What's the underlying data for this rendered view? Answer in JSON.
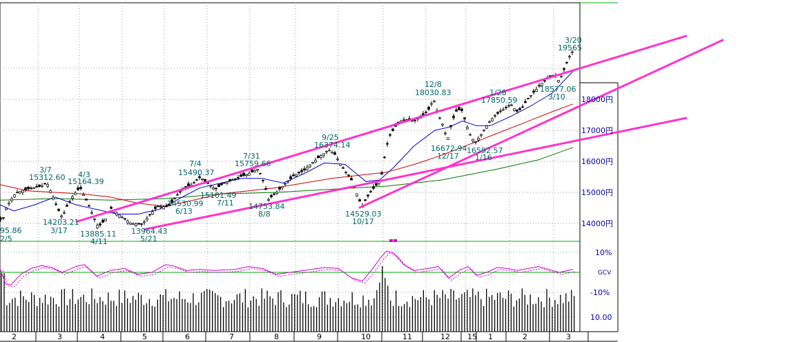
{
  "colors": {
    "frame": "#000000",
    "panel_line": "#00aa00",
    "grid": "#999999",
    "price": "#000000",
    "ma_short": "#0000cc",
    "ma_mid": "#cc0000",
    "ma_long": "#007700",
    "trendline": "#ff33cc",
    "annotation": "#006666",
    "label": "#0000aa",
    "oscillator": "#cc00cc",
    "volume": "#000000"
  },
  "chart_data": {
    "type": "line",
    "description_units": "Nikkei-style daily price chart (yen) with moving averages, trend channel lines, oscillator and volume",
    "price_axis": {
      "min": 13000,
      "max": 19800,
      "ticks": [
        14000,
        15000,
        16000,
        17000,
        18000
      ],
      "tick_labels": [
        "14000円",
        "15000円",
        "16000円",
        "17000円",
        "18000円"
      ]
    },
    "month_labels": [
      "2",
      "3",
      "4",
      "5",
      "6",
      "7",
      "8",
      "9",
      "10",
      "11",
      "12",
      "15",
      "1",
      "2",
      "3"
    ],
    "osc_labels": [
      "10%",
      "GCV",
      "-10%"
    ],
    "volume_label": "10.00",
    "annotations": [
      {
        "text": "3/7",
        "price": 15312.6,
        "date": "3/7"
      },
      {
        "text": "15312.60",
        "price": 15312.6
      },
      {
        "text": "4/3",
        "price": 15164.39
      },
      {
        "text": "15164.39",
        "price": 15164.39
      },
      {
        "text": "14203.21",
        "price": 14203.21
      },
      {
        "text": "3/17",
        "price": 14203.21
      },
      {
        "text": "13885.11",
        "price": 13885.11
      },
      {
        "text": "4/11",
        "price": 13885.11
      },
      {
        "text": "13964.43",
        "price": 13964.43
      },
      {
        "text": "5/21",
        "price": 13964.43
      },
      {
        "text": "14530.99",
        "price": 14530.99
      },
      {
        "text": "6/13",
        "price": 14530.99
      },
      {
        "text": "7/4",
        "price": 15490.37
      },
      {
        "text": "15490.37",
        "price": 15490.37
      },
      {
        "text": "15101.49",
        "price": 15101.49
      },
      {
        "text": "7/11",
        "price": 15101.49
      },
      {
        "text": "7/31",
        "price": 15759.66
      },
      {
        "text": "15759.66",
        "price": 15759.66
      },
      {
        "text": "14753.84",
        "price": 14753.84
      },
      {
        "text": "8/8",
        "price": 14753.84
      },
      {
        "text": "9/25",
        "price": 16374.14
      },
      {
        "text": "16374.14",
        "price": 16374.14
      },
      {
        "text": "14529.03",
        "price": 14529.03
      },
      {
        "text": "10/17",
        "price": 14529.03
      },
      {
        "text": "12/8",
        "price": 18030.83
      },
      {
        "text": "18030.83",
        "price": 18030.83
      },
      {
        "text": "16672.94",
        "price": 16672.94
      },
      {
        "text": "12/17",
        "price": 16672.94
      },
      {
        "text": "1/28",
        "price": 17850.59
      },
      {
        "text": "17850.59",
        "price": 17850.59
      },
      {
        "text": "16592.57",
        "price": 16592.57
      },
      {
        "text": "1/16",
        "price": 16592.57
      },
      {
        "text": "3/20",
        "price": 19565
      },
      {
        "text": "19565",
        "price": 19565
      },
      {
        "text": "18577.06",
        "price": 18577.06
      },
      {
        "text": "3/10",
        "price": 18577.06
      },
      {
        "text": "95.86",
        "price": 14095.86
      },
      {
        "text": "2/5",
        "price": 14095.86
      }
    ],
    "price_path": [
      [
        0,
        14150
      ],
      [
        4,
        14096
      ],
      [
        8,
        14450
      ],
      [
        14,
        14700
      ],
      [
        22,
        14950
      ],
      [
        30,
        15050
      ],
      [
        40,
        15100
      ],
      [
        50,
        15150
      ],
      [
        60,
        15200
      ],
      [
        68,
        15310
      ],
      [
        76,
        14900
      ],
      [
        84,
        14450
      ],
      [
        90,
        14203
      ],
      [
        98,
        14600
      ],
      [
        106,
        14900
      ],
      [
        116,
        15164
      ],
      [
        126,
        14700
      ],
      [
        134,
        14300
      ],
      [
        142,
        13885
      ],
      [
        152,
        14100
      ],
      [
        160,
        14500
      ],
      [
        168,
        14350
      ],
      [
        180,
        14150
      ],
      [
        190,
        14000
      ],
      [
        206,
        13964
      ],
      [
        216,
        14250
      ],
      [
        228,
        14550
      ],
      [
        244,
        14531
      ],
      [
        256,
        14900
      ],
      [
        268,
        15150
      ],
      [
        278,
        15250
      ],
      [
        290,
        15490
      ],
      [
        300,
        15300
      ],
      [
        312,
        15101
      ],
      [
        324,
        15300
      ],
      [
        336,
        15400
      ],
      [
        348,
        15500
      ],
      [
        362,
        15620
      ],
      [
        374,
        15760
      ],
      [
        384,
        15200
      ],
      [
        388,
        14754
      ],
      [
        398,
        14950
      ],
      [
        412,
        15250
      ],
      [
        426,
        15550
      ],
      [
        440,
        15700
      ],
      [
        452,
        15950
      ],
      [
        466,
        16200
      ],
      [
        476,
        16374
      ],
      [
        486,
        16200
      ],
      [
        496,
        15800
      ],
      [
        508,
        15450
      ],
      [
        518,
        14900
      ],
      [
        524,
        14529
      ],
      [
        532,
        14850
      ],
      [
        540,
        15100
      ],
      [
        548,
        15300
      ],
      [
        554,
        15650
      ],
      [
        558,
        16300
      ],
      [
        564,
        16800
      ],
      [
        572,
        17100
      ],
      [
        580,
        17300
      ],
      [
        590,
        17350
      ],
      [
        600,
        17300
      ],
      [
        612,
        17450
      ],
      [
        622,
        17700
      ],
      [
        628,
        18031
      ],
      [
        634,
        17550
      ],
      [
        642,
        17150
      ],
      [
        648,
        16673
      ],
      [
        654,
        17200
      ],
      [
        660,
        17600
      ],
      [
        668,
        17700
      ],
      [
        674,
        17300
      ],
      [
        680,
        16900
      ],
      [
        688,
        16593
      ],
      [
        698,
        16900
      ],
      [
        708,
        17250
      ],
      [
        718,
        17500
      ],
      [
        728,
        17650
      ],
      [
        740,
        17851
      ],
      [
        748,
        17600
      ],
      [
        756,
        17700
      ],
      [
        764,
        18000
      ],
      [
        774,
        18250
      ],
      [
        784,
        18500
      ],
      [
        794,
        18700
      ],
      [
        804,
        18800
      ],
      [
        810,
        18577
      ],
      [
        816,
        18900
      ],
      [
        824,
        19350
      ],
      [
        830,
        19565
      ]
    ],
    "ma_short_path": [
      [
        0,
        14600
      ],
      [
        20,
        14400
      ],
      [
        50,
        14600
      ],
      [
        80,
        14850
      ],
      [
        110,
        14600
      ],
      [
        140,
        14450
      ],
      [
        170,
        14300
      ],
      [
        200,
        14300
      ],
      [
        230,
        14450
      ],
      [
        260,
        14800
      ],
      [
        290,
        15150
      ],
      [
        320,
        15300
      ],
      [
        350,
        15450
      ],
      [
        380,
        15450
      ],
      [
        410,
        15300
      ],
      [
        440,
        15600
      ],
      [
        470,
        15950
      ],
      [
        500,
        15900
      ],
      [
        530,
        15350
      ],
      [
        550,
        15400
      ],
      [
        570,
        15800
      ],
      [
        600,
        16500
      ],
      [
        630,
        17000
      ],
      [
        650,
        17100
      ],
      [
        670,
        17300
      ],
      [
        690,
        17150
      ],
      [
        710,
        17150
      ],
      [
        740,
        17450
      ],
      [
        770,
        17800
      ],
      [
        800,
        18200
      ],
      [
        830,
        18900
      ]
    ],
    "ma_mid_path": [
      [
        0,
        15250
      ],
      [
        40,
        15050
      ],
      [
        80,
        15000
      ],
      [
        120,
        14950
      ],
      [
        160,
        14850
      ],
      [
        200,
        14650
      ],
      [
        240,
        14550
      ],
      [
        280,
        14750
      ],
      [
        320,
        14950
      ],
      [
        360,
        15050
      ],
      [
        400,
        15150
      ],
      [
        440,
        15300
      ],
      [
        480,
        15450
      ],
      [
        520,
        15550
      ],
      [
        560,
        15650
      ],
      [
        600,
        15900
      ],
      [
        640,
        16200
      ],
      [
        680,
        16550
      ],
      [
        720,
        16900
      ],
      [
        760,
        17250
      ],
      [
        800,
        17600
      ],
      [
        830,
        17850
      ]
    ],
    "ma_long_path": [
      [
        0,
        14750
      ],
      [
        80,
        14800
      ],
      [
        160,
        14750
      ],
      [
        240,
        14800
      ],
      [
        320,
        14950
      ],
      [
        400,
        15000
      ],
      [
        480,
        15100
      ],
      [
        560,
        15200
      ],
      [
        640,
        15400
      ],
      [
        720,
        15750
      ],
      [
        780,
        16050
      ],
      [
        830,
        16450
      ]
    ],
    "trend_lines": [
      {
        "name": "upper-channel",
        "p1": [
          110,
          14050
        ],
        "p2": [
          995,
          20050
        ]
      },
      {
        "name": "lower-long",
        "p1": [
          208,
          13800
        ],
        "p2": [
          995,
          17400
        ]
      },
      {
        "name": "lower-steep",
        "p1": [
          520,
          14500
        ],
        "p2": [
          1048,
          19920
        ]
      }
    ],
    "osc_path": [
      [
        0,
        2.0
      ],
      [
        8,
        -6
      ],
      [
        16,
        -6.5
      ],
      [
        30,
        -1
      ],
      [
        45,
        2
      ],
      [
        60,
        3.5
      ],
      [
        75,
        2.5
      ],
      [
        90,
        0
      ],
      [
        110,
        3
      ],
      [
        122,
        4
      ],
      [
        140,
        -2
      ],
      [
        160,
        1
      ],
      [
        180,
        2
      ],
      [
        200,
        -1
      ],
      [
        220,
        0
      ],
      [
        240,
        4
      ],
      [
        252,
        3.3
      ],
      [
        270,
        1
      ],
      [
        290,
        1.5
      ],
      [
        310,
        1
      ],
      [
        340,
        1.5
      ],
      [
        360,
        3
      ],
      [
        380,
        2
      ],
      [
        400,
        -1
      ],
      [
        420,
        0
      ],
      [
        440,
        1
      ],
      [
        470,
        2.5
      ],
      [
        490,
        2
      ],
      [
        510,
        -3
      ],
      [
        525,
        -4.5
      ],
      [
        540,
        2
      ],
      [
        552,
        8
      ],
      [
        560,
        11
      ],
      [
        570,
        10
      ],
      [
        585,
        4
      ],
      [
        600,
        1
      ],
      [
        620,
        2
      ],
      [
        635,
        3
      ],
      [
        650,
        -3
      ],
      [
        665,
        1
      ],
      [
        678,
        3
      ],
      [
        690,
        -1.5
      ],
      [
        705,
        0
      ],
      [
        720,
        2.5
      ],
      [
        735,
        2
      ],
      [
        750,
        1
      ],
      [
        765,
        2
      ],
      [
        780,
        3
      ],
      [
        795,
        1.5
      ],
      [
        810,
        0
      ],
      [
        830,
        1.5
      ]
    ],
    "volume_bars_count": 210
  }
}
